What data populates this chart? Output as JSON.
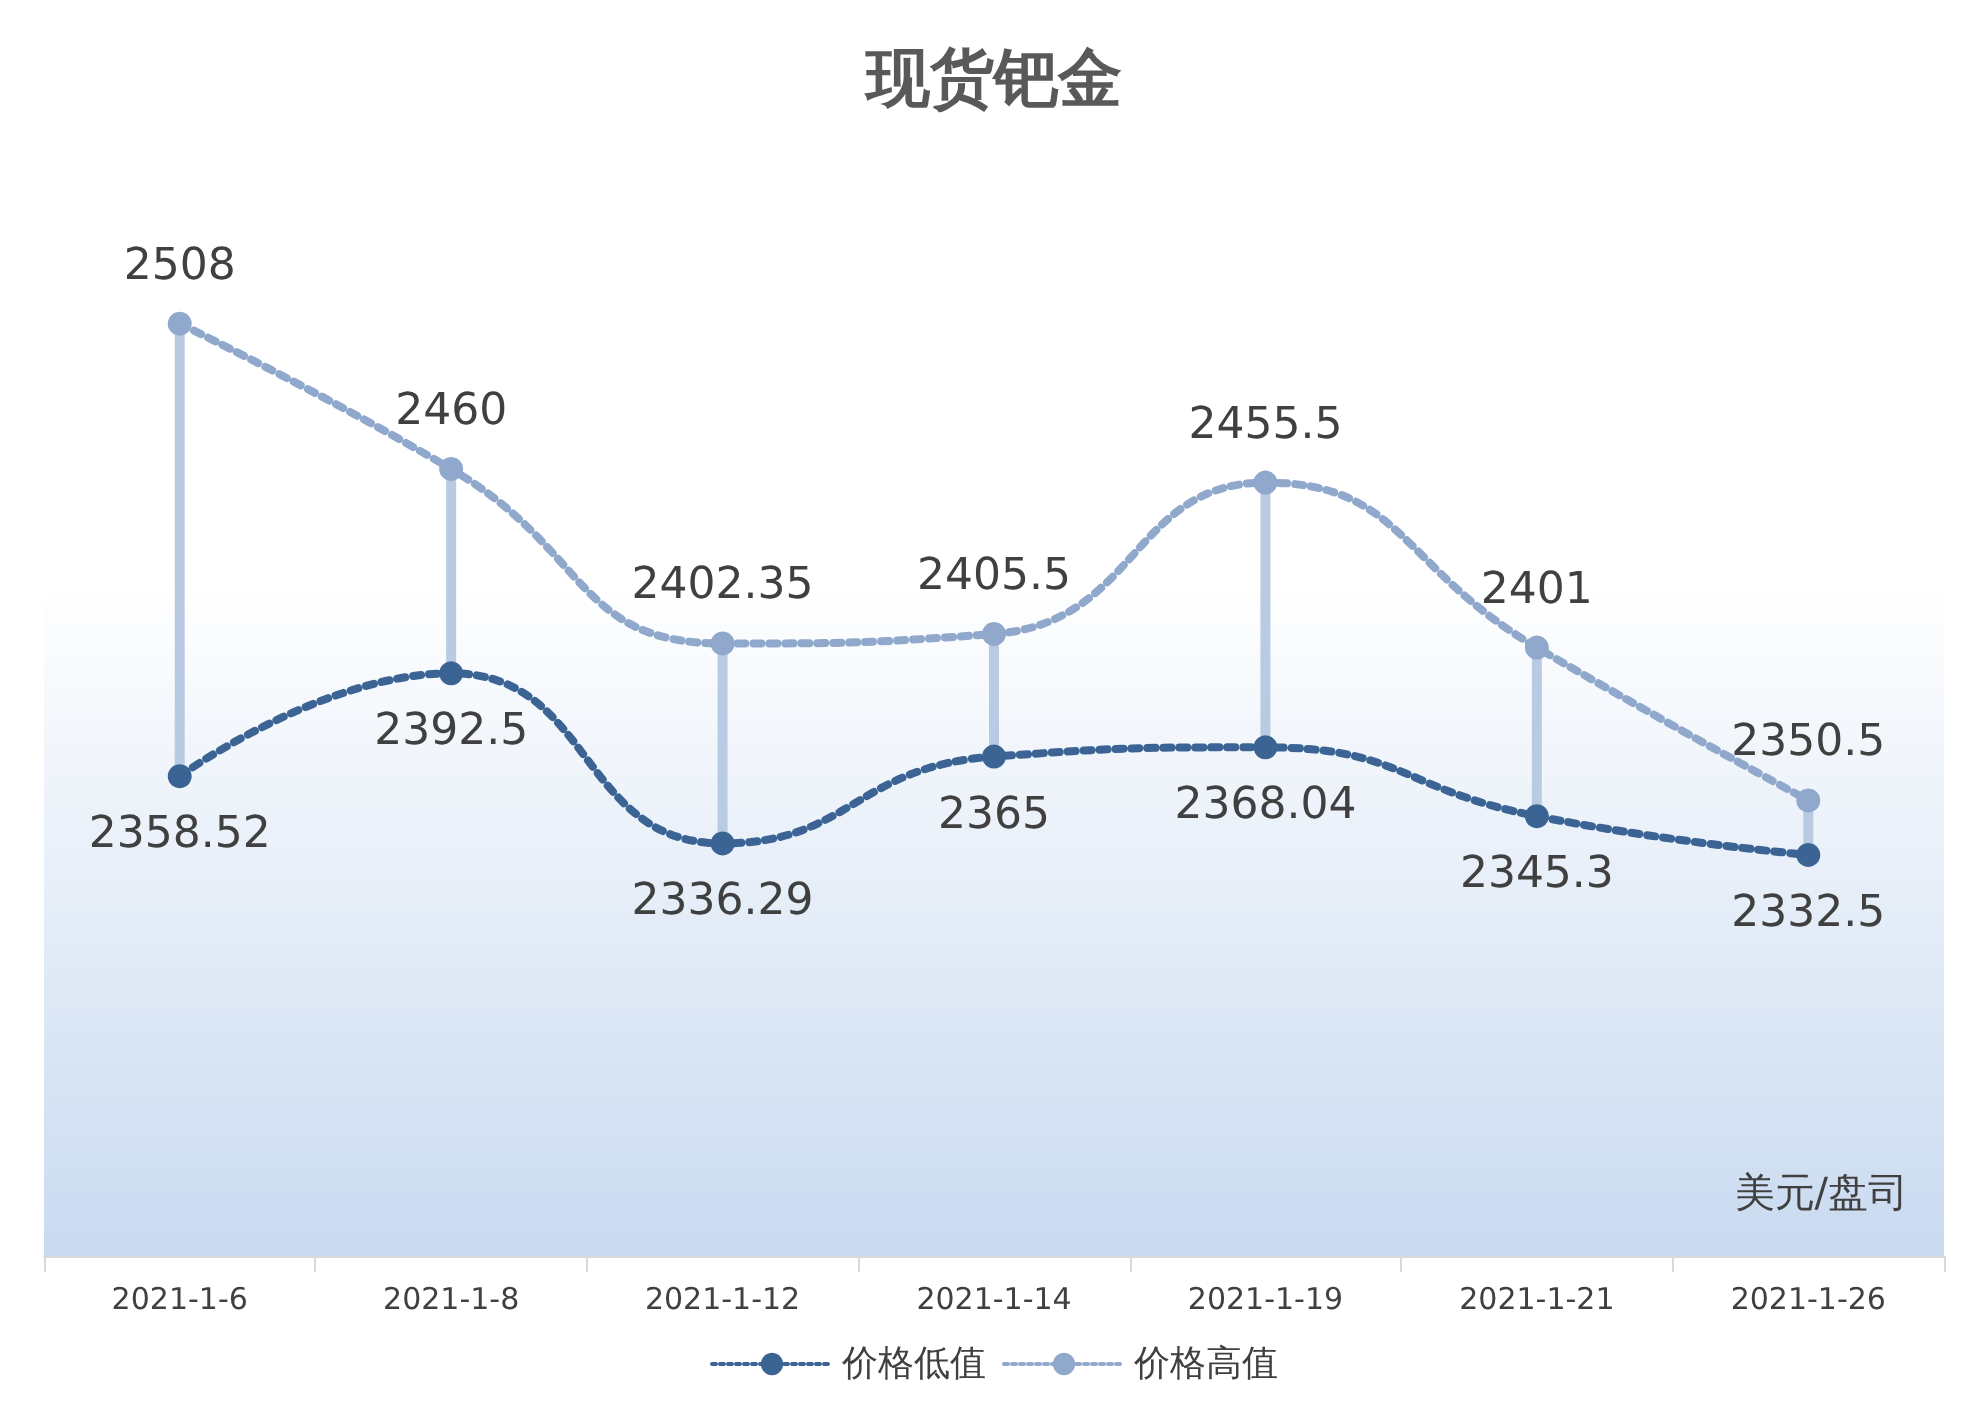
{
  "chart_data": {
    "type": "line",
    "title": "现货钯金",
    "categories": [
      "2021-1-6",
      "2021-1-8",
      "2021-1-12",
      "2021-1-14",
      "2021-1-19",
      "2021-1-21",
      "2021-1-26"
    ],
    "series": [
      {
        "name": "价格低值",
        "color": "#3b6495",
        "values": [
          2358.52,
          2392.5,
          2336.29,
          2365,
          2368.04,
          2345.3,
          2332.5
        ]
      },
      {
        "name": "价格高值",
        "color": "#8fa8cb",
        "values": [
          2508,
          2460,
          2402.35,
          2405.5,
          2455.5,
          2401,
          2350.5
        ]
      }
    ],
    "ylim": [
      2200,
      2570
    ],
    "tick_labels": "x",
    "data_labels": true,
    "marker": "circle",
    "line_style": "dotted",
    "grid": false,
    "legend": "bottom",
    "annotations": [
      "美元/盘司"
    ]
  }
}
